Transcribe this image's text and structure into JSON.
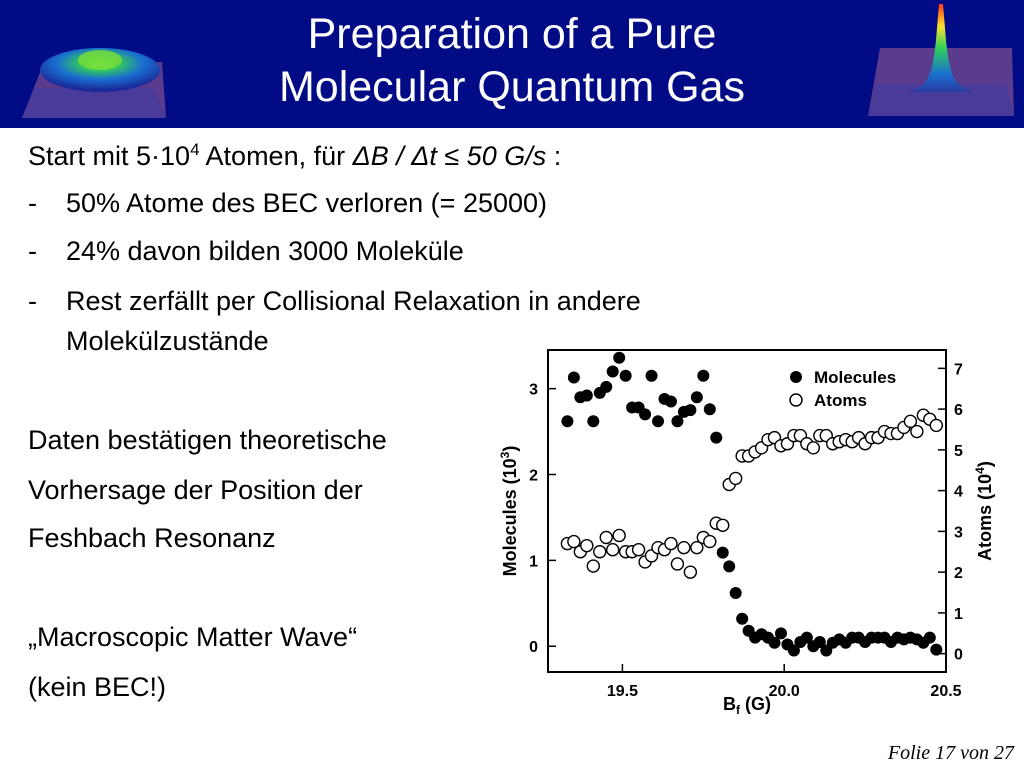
{
  "header": {
    "title_line1": "Preparation of a Pure",
    "title_line2": "Molecular Quantum Gas",
    "background_color": "#000b85"
  },
  "intro": {
    "prefix": "Start mit 5·10",
    "exponent": "4",
    "middle": " Atomen, für ",
    "formula": "ΔB / Δt ≤ 50 G/s",
    "suffix": " :"
  },
  "bullets": [
    {
      "marker": "-",
      "lines": [
        "50% Atome des BEC verloren (= 25000)"
      ]
    },
    {
      "marker": "-",
      "lines": [
        "24% davon bilden 3000 Moleküle"
      ]
    },
    {
      "marker": "-",
      "lines": [
        "Rest zerfällt per Collisional Relaxation in andere",
        "Molekülzustände"
      ]
    }
  ],
  "paragraph": [
    "Daten bestätigen theoretische",
    "Vorhersage der Position der",
    "Feshbach Resonanz"
  ],
  "quote": [
    "„Macroscopic Matter Wave“",
    "(kein BEC!)"
  ],
  "footer": "Folie 17 von 27",
  "chart_data": {
    "type": "scatter",
    "xlabel_main": "B",
    "xlabel_sub": "f",
    "xlabel_unit": " (G)",
    "ylabel_left_main": "Molecules (10",
    "ylabel_left_exp": "3",
    "ylabel_left_close": ")",
    "ylabel_right_main": "Atoms (10",
    "ylabel_right_exp": "4",
    "ylabel_right_close": ")",
    "xlim": [
      19.27,
      20.5
    ],
    "ylim_left": [
      -0.3,
      3.45
    ],
    "ylim_right": [
      -0.45,
      7.45
    ],
    "x_ticks": [
      19.5,
      20.0,
      20.5
    ],
    "x_tick_labels": [
      "19.5",
      "20.0",
      "20.5"
    ],
    "y_left_ticks": [
      0,
      1,
      2,
      3
    ],
    "y_left_tick_labels": [
      "0",
      "1",
      "2",
      "3"
    ],
    "y_right_ticks": [
      0,
      1,
      2,
      3,
      4,
      5,
      6,
      7
    ],
    "y_right_tick_labels": [
      "0",
      "1",
      "2",
      "3",
      "4",
      "5",
      "6",
      "7"
    ],
    "legend_position": "top-right",
    "series": [
      {
        "name": "Molecules",
        "axis": "left",
        "marker": "filled-circle",
        "x": [
          19.33,
          19.35,
          19.37,
          19.39,
          19.41,
          19.43,
          19.45,
          19.47,
          19.49,
          19.51,
          19.53,
          19.55,
          19.57,
          19.59,
          19.61,
          19.63,
          19.65,
          19.67,
          19.69,
          19.71,
          19.73,
          19.75,
          19.77,
          19.79,
          19.81,
          19.83,
          19.85,
          19.87,
          19.89,
          19.91,
          19.93,
          19.95,
          19.97,
          19.99,
          20.01,
          20.03,
          20.05,
          20.07,
          20.09,
          20.11,
          20.13,
          20.15,
          20.17,
          20.19,
          20.21,
          20.23,
          20.25,
          20.27,
          20.29,
          20.31,
          20.33,
          20.35,
          20.37,
          20.39,
          20.41,
          20.43,
          20.45,
          20.47
        ],
        "y": [
          2.62,
          3.13,
          2.9,
          2.92,
          2.62,
          2.95,
          3.02,
          3.2,
          3.36,
          3.15,
          2.78,
          2.78,
          2.7,
          3.15,
          2.62,
          2.88,
          2.85,
          2.62,
          2.73,
          2.75,
          2.9,
          3.15,
          2.76,
          2.43,
          1.09,
          0.93,
          0.62,
          0.32,
          0.18,
          0.1,
          0.14,
          0.1,
          0.04,
          0.15,
          0.02,
          -0.05,
          0.05,
          0.1,
          0.0,
          0.05,
          -0.05,
          0.04,
          0.08,
          0.04,
          0.1,
          0.1,
          0.05,
          0.1,
          0.1,
          0.1,
          0.05,
          0.1,
          0.08,
          0.1,
          0.08,
          0.04,
          0.1,
          -0.04
        ]
      },
      {
        "name": "Atoms",
        "axis": "right",
        "marker": "open-circle",
        "x": [
          19.33,
          19.35,
          19.37,
          19.39,
          19.41,
          19.43,
          19.45,
          19.47,
          19.49,
          19.51,
          19.53,
          19.55,
          19.57,
          19.59,
          19.61,
          19.63,
          19.65,
          19.67,
          19.69,
          19.71,
          19.73,
          19.75,
          19.77,
          19.79,
          19.81,
          19.83,
          19.85,
          19.87,
          19.89,
          19.91,
          19.93,
          19.95,
          19.97,
          19.99,
          20.01,
          20.03,
          20.05,
          20.07,
          20.09,
          20.11,
          20.13,
          20.15,
          20.17,
          20.19,
          20.21,
          20.23,
          20.25,
          20.27,
          20.29,
          20.31,
          20.33,
          20.35,
          20.37,
          20.39,
          20.41,
          20.43,
          20.45,
          20.47
        ],
        "y": [
          2.7,
          2.75,
          2.5,
          2.65,
          2.15,
          2.5,
          2.85,
          2.55,
          2.9,
          2.5,
          2.5,
          2.55,
          2.25,
          2.4,
          2.6,
          2.55,
          2.7,
          2.2,
          2.6,
          2.0,
          2.6,
          2.85,
          2.75,
          3.2,
          3.15,
          4.15,
          4.3,
          4.85,
          4.85,
          4.95,
          5.05,
          5.25,
          5.3,
          5.1,
          5.15,
          5.35,
          5.35,
          5.15,
          5.05,
          5.35,
          5.35,
          5.15,
          5.2,
          5.25,
          5.2,
          5.3,
          5.15,
          5.3,
          5.3,
          5.45,
          5.4,
          5.4,
          5.55,
          5.7,
          5.45,
          5.85,
          5.75,
          5.6
        ]
      }
    ]
  }
}
